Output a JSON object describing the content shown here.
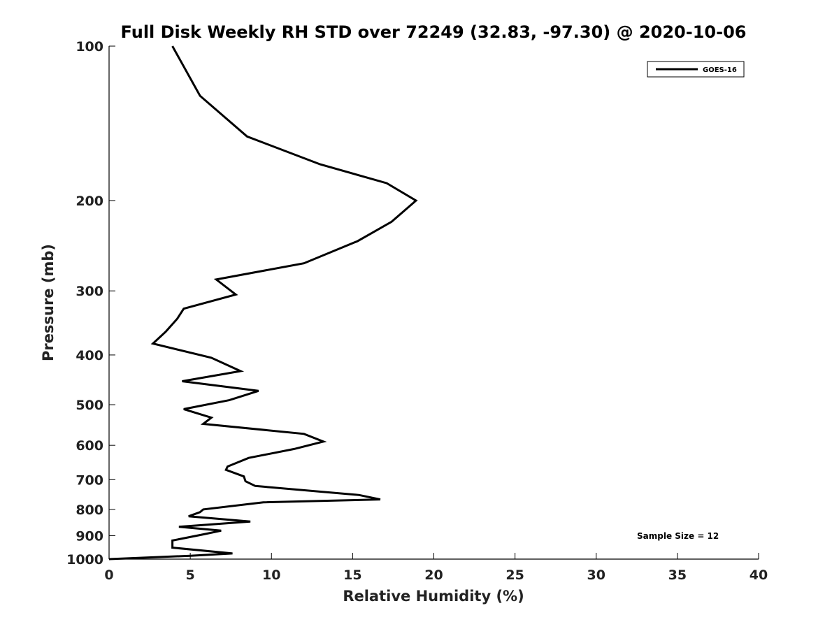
{
  "chart_data": {
    "type": "line",
    "title": "Full Disk Weekly RH STD over 72249 (32.83, -97.30) @ 2020-10-06",
    "xlabel": "Relative Humidity (%)",
    "ylabel": "Pressure (mb)",
    "xlim": [
      0,
      40
    ],
    "ylim": [
      1000,
      100
    ],
    "y_scale": "log",
    "x_ticks": [
      0,
      5,
      10,
      15,
      20,
      25,
      30,
      35,
      40
    ],
    "x_tick_labels": [
      "0",
      "5",
      "10",
      "15",
      "20",
      "25",
      "30",
      "35",
      "40"
    ],
    "y_ticks": [
      100,
      200,
      300,
      400,
      500,
      600,
      700,
      800,
      900,
      1000
    ],
    "y_tick_labels": [
      "100",
      "200",
      "300",
      "400",
      "500",
      "600",
      "700",
      "800",
      "900",
      "1000"
    ],
    "grid": false,
    "legend": {
      "placement": "top-right",
      "entries": [
        "GOES-16"
      ]
    },
    "annotation": "Sample Size = 12",
    "series": [
      {
        "name": "GOES-16",
        "color": "#000000",
        "points": [
          [
            3.9,
            100
          ],
          [
            5.6,
            125
          ],
          [
            8.5,
            150
          ],
          [
            13.0,
            170
          ],
          [
            17.1,
            185
          ],
          [
            18.9,
            200
          ],
          [
            17.4,
            220
          ],
          [
            15.3,
            240
          ],
          [
            12.0,
            265
          ],
          [
            6.6,
            285
          ],
          [
            7.8,
            305
          ],
          [
            4.6,
            325
          ],
          [
            4.2,
            340
          ],
          [
            3.5,
            360
          ],
          [
            2.7,
            380
          ],
          [
            6.3,
            405
          ],
          [
            8.1,
            430
          ],
          [
            4.5,
            450
          ],
          [
            9.2,
            470
          ],
          [
            7.4,
            490
          ],
          [
            4.6,
            510
          ],
          [
            6.3,
            530
          ],
          [
            5.8,
            545
          ],
          [
            12.0,
            570
          ],
          [
            13.2,
            590
          ],
          [
            11.4,
            610
          ],
          [
            8.6,
            635
          ],
          [
            7.3,
            660
          ],
          [
            7.2,
            670
          ],
          [
            8.3,
            690
          ],
          [
            8.4,
            705
          ],
          [
            9.0,
            720
          ],
          [
            15.4,
            750
          ],
          [
            16.7,
            765
          ],
          [
            9.5,
            775
          ],
          [
            5.8,
            800
          ],
          [
            5.6,
            810
          ],
          [
            4.9,
            825
          ],
          [
            8.7,
            845
          ],
          [
            4.3,
            865
          ],
          [
            6.9,
            880
          ],
          [
            5.8,
            895
          ],
          [
            3.9,
            920
          ],
          [
            3.9,
            950
          ],
          [
            7.6,
            975
          ],
          [
            5.0,
            985
          ],
          [
            0.0,
            1000
          ]
        ]
      }
    ]
  }
}
